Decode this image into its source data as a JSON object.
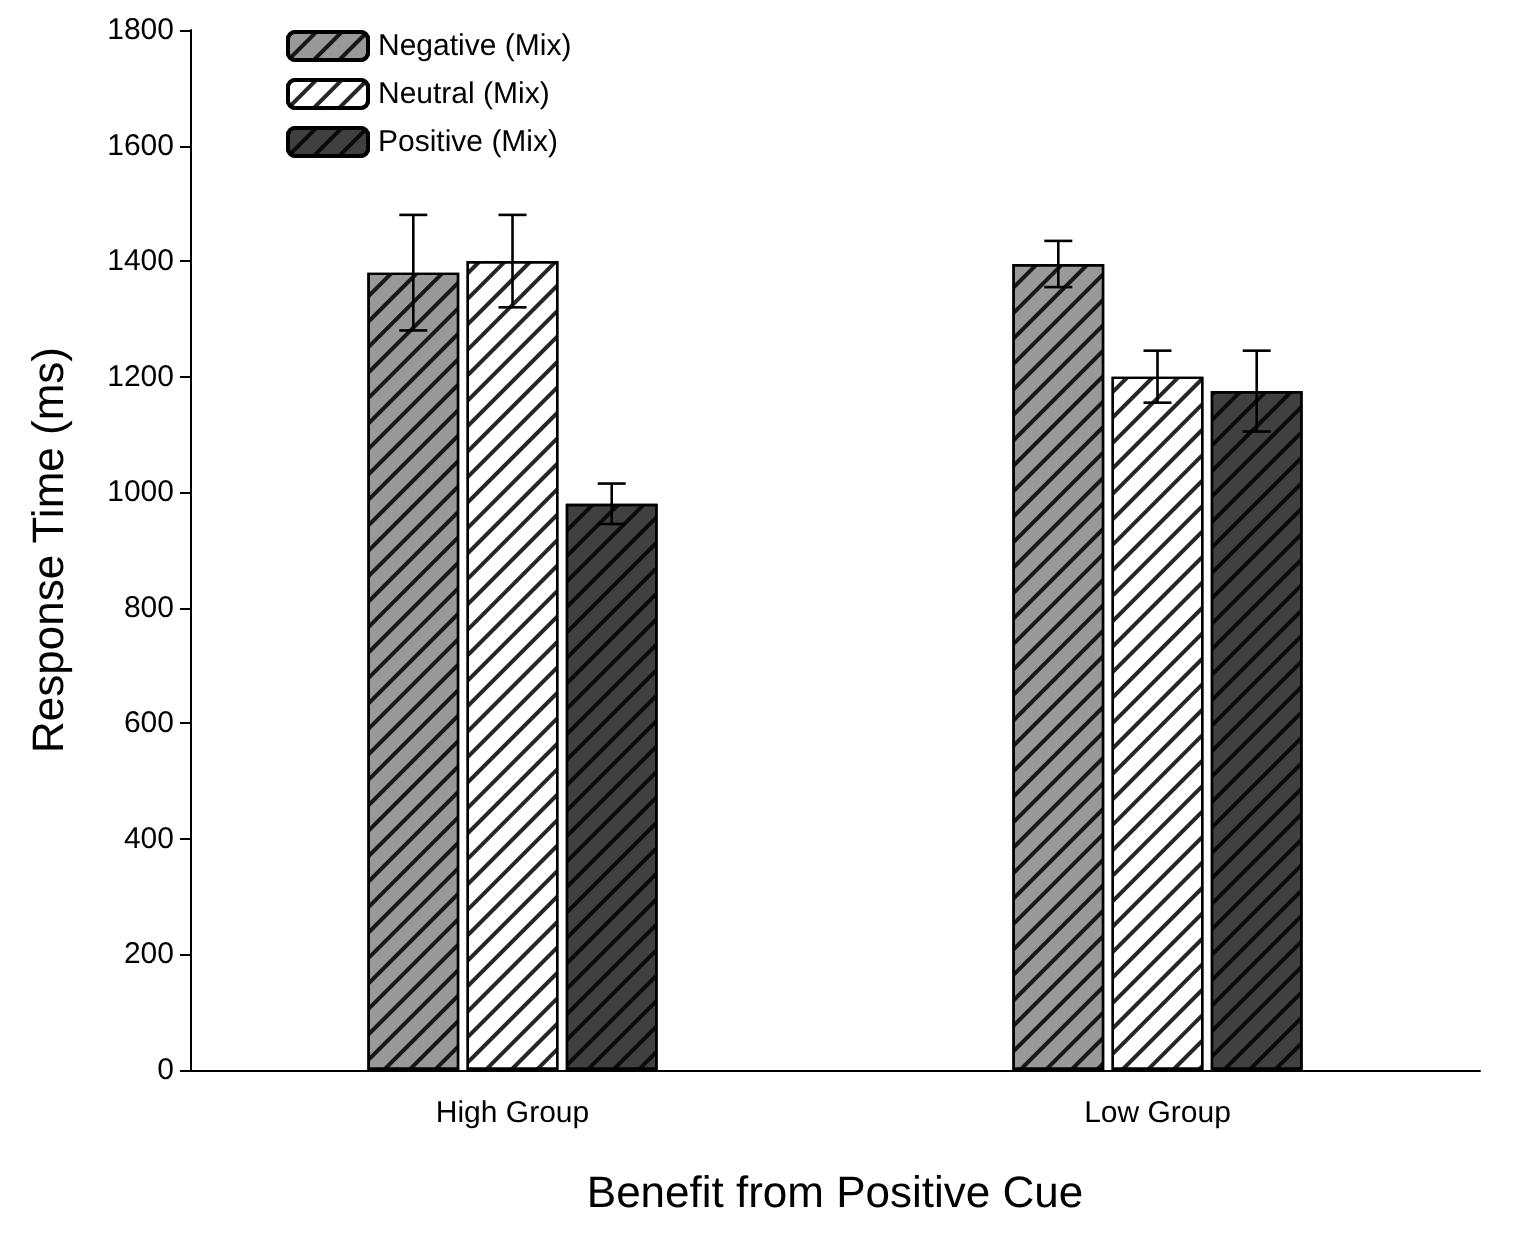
{
  "chart_data": {
    "type": "bar",
    "xlabel": "Benefit from Positive Cue",
    "ylabel": "Response Time (ms)",
    "categories": [
      "High Group",
      "Low Group"
    ],
    "series": [
      {
        "name": "Negative (Mix)",
        "color": "#999999",
        "values": [
          1380,
          1395
        ],
        "errors": [
          100,
          40
        ]
      },
      {
        "name": "Neutral (Mix)",
        "color": "#ffffff",
        "values": [
          1400,
          1200
        ],
        "errors": [
          80,
          45
        ]
      },
      {
        "name": "Positive (Mix)",
        "color": "#404040",
        "values": [
          980,
          1175
        ],
        "errors": [
          35,
          70
        ]
      }
    ],
    "ylim": [
      0,
      1800
    ],
    "yticks": [
      0,
      200,
      400,
      600,
      800,
      1000,
      1200,
      1400,
      1600,
      1800
    ],
    "grid": false,
    "legend": "top left"
  }
}
